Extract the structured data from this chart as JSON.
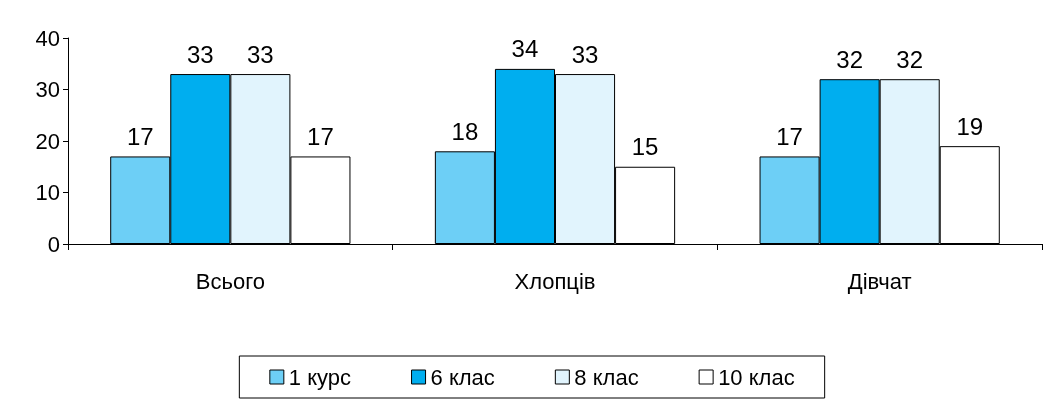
{
  "chart_data": {
    "type": "bar",
    "categories": [
      "Всього",
      "Хлопців",
      "Дівчат"
    ],
    "series": [
      {
        "name": "1 курс",
        "color": "#6dcff6",
        "values": [
          17,
          18,
          17
        ]
      },
      {
        "name": "6 клас",
        "color": "#00aeef",
        "values": [
          33,
          34,
          32
        ]
      },
      {
        "name": "8 клас",
        "color": "#e1f4fd",
        "values": [
          33,
          33,
          32
        ]
      },
      {
        "name": "10 клас",
        "color": "#ffffff",
        "values": [
          17,
          15,
          19
        ]
      }
    ],
    "ylim": [
      0,
      40
    ],
    "yticks": [
      0,
      10,
      20,
      30,
      40
    ],
    "grid": false,
    "legend": "bottom",
    "data_labels": true
  }
}
